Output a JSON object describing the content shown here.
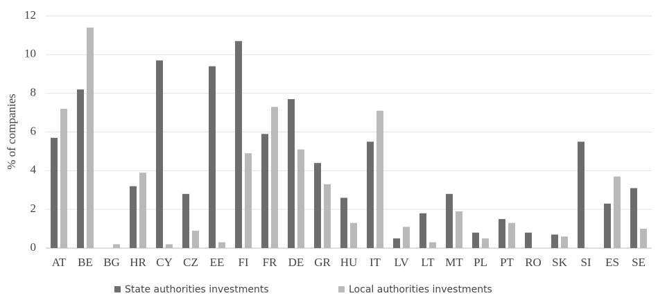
{
  "chart_data": {
    "type": "bar",
    "ylabel": "% of companies",
    "categories": [
      "AT",
      "BE",
      "BG",
      "HR",
      "CY",
      "CZ",
      "EE",
      "FI",
      "FR",
      "DE",
      "GR",
      "HU",
      "IT",
      "LV",
      "LT",
      "MT",
      "PL",
      "PT",
      "RO",
      "SK",
      "SI",
      "ES",
      "SE"
    ],
    "series": [
      {
        "name": "State authorities investments",
        "color": "#6d6d6d",
        "values": [
          5.7,
          8.2,
          0,
          3.2,
          9.7,
          2.8,
          9.4,
          10.7,
          5.9,
          7.7,
          4.4,
          2.6,
          5.5,
          0.5,
          1.8,
          2.8,
          0.8,
          1.5,
          0.8,
          0.7,
          5.5,
          2.3,
          3.1
        ]
      },
      {
        "name": "Local authorities investments",
        "color": "#b9b9b9",
        "values": [
          7.2,
          11.4,
          0.2,
          3.9,
          0.2,
          0.9,
          0.3,
          4.9,
          7.3,
          5.1,
          3.3,
          1.3,
          7.1,
          1.1,
          0.3,
          1.9,
          0.5,
          1.3,
          0,
          0.6,
          0,
          3.7,
          1.0
        ]
      }
    ],
    "ylim": [
      0,
      12
    ],
    "yticks": [
      0,
      2,
      4,
      6,
      8,
      10,
      12
    ],
    "grid": true,
    "legend": "bottom"
  }
}
